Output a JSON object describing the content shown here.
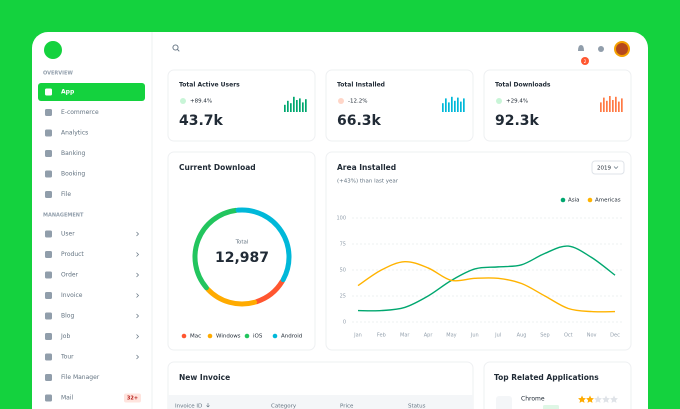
{
  "sidebar": {
    "sections": [
      {
        "title": "OVERVIEW",
        "items": [
          "App",
          "E-commerce",
          "Analytics",
          "Banking",
          "Booking",
          "File"
        ]
      },
      {
        "title": "MANAGEMENT",
        "items": [
          "User",
          "Product",
          "Order",
          "Invoice",
          "Blog",
          "Job",
          "Tour",
          "File Manager",
          "Mail"
        ]
      }
    ],
    "mail_badge": "32+"
  },
  "notification_badge": "2",
  "stats": [
    {
      "title": "Total Active Users",
      "change": "+89.4%",
      "value": "43.7k",
      "color": "#00a76f",
      "bars": [
        45,
        70,
        55,
        95,
        75,
        85,
        60,
        80
      ]
    },
    {
      "title": "Total Installed",
      "change": "-12.2%",
      "value": "66.3k",
      "color": "#00b8d9",
      "bars": [
        55,
        85,
        60,
        95,
        70,
        90,
        65,
        85
      ]
    },
    {
      "title": "Total Downloads",
      "change": "+29.4%",
      "value": "92.3k",
      "color": "#ff7a45",
      "bars": [
        60,
        90,
        70,
        100,
        75,
        95,
        65,
        85
      ]
    }
  ],
  "chart_data": [
    {
      "type": "donut",
      "title": "Current Download",
      "center_label": "Total",
      "center_value": "12,987",
      "categories": [
        "Mac",
        "Windows",
        "iOS",
        "Android"
      ],
      "values": [
        1558,
        2338,
        4545,
        4546
      ],
      "colors": [
        "#ff5630",
        "#ffab00",
        "#22c55e",
        "#00b8d9"
      ]
    },
    {
      "type": "line",
      "title": "Area Installed",
      "subtitle": "(+43%) than last year",
      "selector": "2019",
      "categories": [
        "Jan",
        "Feb",
        "Mar",
        "Apr",
        "May",
        "Jun",
        "Jul",
        "Aug",
        "Sep",
        "Oct",
        "Nov",
        "Dec"
      ],
      "series": [
        {
          "name": "Asia",
          "color": "#00a76f",
          "values": [
            11,
            11,
            14,
            25,
            40,
            51,
            53,
            55,
            66,
            73,
            62,
            45
          ]
        },
        {
          "name": "Americas",
          "color": "#ffb300",
          "values": [
            35,
            50,
            58,
            52,
            40,
            42,
            42,
            37,
            25,
            13,
            10,
            10
          ]
        }
      ],
      "ylim": [
        0,
        100
      ],
      "yticks": [
        0,
        25,
        50,
        75,
        100
      ],
      "grid": true
    }
  ],
  "invoice": {
    "title": "New Invoice",
    "columns": [
      "Invoice ID",
      "Category",
      "Price",
      "Status"
    ]
  },
  "apps": {
    "title": "Top Related Applications",
    "items": [
      {
        "name": "Chrome",
        "rating": 2
      }
    ]
  }
}
